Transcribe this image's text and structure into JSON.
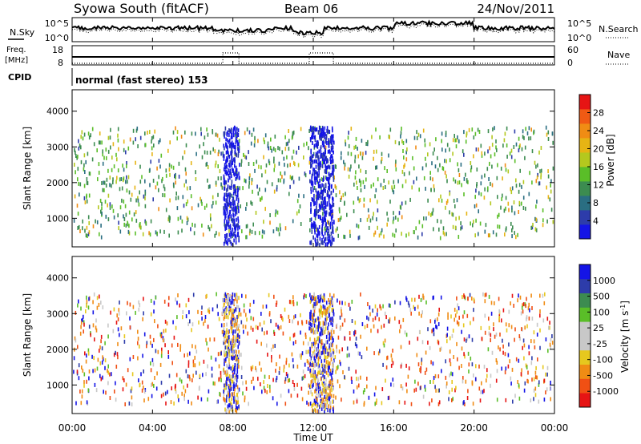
{
  "header": {
    "station": "Syowa South (fitACF)",
    "beam": "Beam 06",
    "date": "24/Nov/2011"
  },
  "noise_panel": {
    "left_label": "N.Sky",
    "left_ticks": [
      "10^5",
      "10^0"
    ],
    "right_ticks": [
      "10^5",
      "10^0"
    ],
    "right_label": "N.Search"
  },
  "freq_panel": {
    "left_label_line1": "Freq.",
    "left_label_line2": "[MHz]",
    "left_ticks": [
      "18",
      "8"
    ],
    "right_ticks": [
      "60",
      "0"
    ],
    "right_label": "Nave"
  },
  "cpid_panel": {
    "label": "CPID",
    "mode_text": "normal (fast stereo) 153"
  },
  "x_axis": {
    "label": "Time UT",
    "ticks": [
      "00:00",
      "04:00",
      "08:00",
      "12:00",
      "16:00",
      "20:00",
      "00:00"
    ],
    "range_hours": [
      0,
      24
    ]
  },
  "colors": {
    "power_scale": [
      "#1414e6",
      "#2d3caa",
      "#2a6e82",
      "#3c8c50",
      "#5abe28",
      "#b4c81e",
      "#e6b414",
      "#f08c14",
      "#f05a14",
      "#e61414"
    ],
    "velocity_scale": [
      "#e61414",
      "#f05014",
      "#f08c14",
      "#e6c81e",
      "#c8c8c8",
      "#c8c8c8",
      "#5abe28",
      "#3c8c50",
      "#2d3caa",
      "#1414e6"
    ]
  },
  "chart_data": [
    {
      "type": "heatmap",
      "title": "",
      "quantity": "Power",
      "ylabel": "Slant Range [km]",
      "ylim": [
        200,
        4600
      ],
      "yticks": [
        1000,
        2000,
        3000,
        4000
      ],
      "colorbar_label": "Power [dB]",
      "colorbar_range": [
        0,
        32
      ],
      "colorbar_ticks": [
        4,
        8,
        12,
        16,
        20,
        24,
        28
      ],
      "scatter_range_km": [
        500,
        3600
      ],
      "activity_bands_hours": [
        [
          7.5,
          8.3
        ],
        [
          11.8,
          13.0
        ]
      ],
      "band_power_db": [
        2,
        8
      ],
      "background_power_db": [
        6,
        24
      ]
    },
    {
      "type": "heatmap",
      "title": "",
      "quantity": "Velocity",
      "ylabel": "Slant Range [km]",
      "ylim": [
        200,
        4600
      ],
      "yticks": [
        1000,
        2000,
        3000,
        4000
      ],
      "colorbar_label": "Velocity [m s^-1]",
      "colorbar_ticks": [
        "1000",
        "500",
        "100",
        "25",
        "-25",
        "-100",
        "-500",
        "-1000"
      ],
      "scatter_range_km": [
        500,
        3600
      ],
      "activity_bands_hours": [
        [
          7.5,
          8.3
        ],
        [
          11.8,
          13.0
        ]
      ]
    }
  ]
}
